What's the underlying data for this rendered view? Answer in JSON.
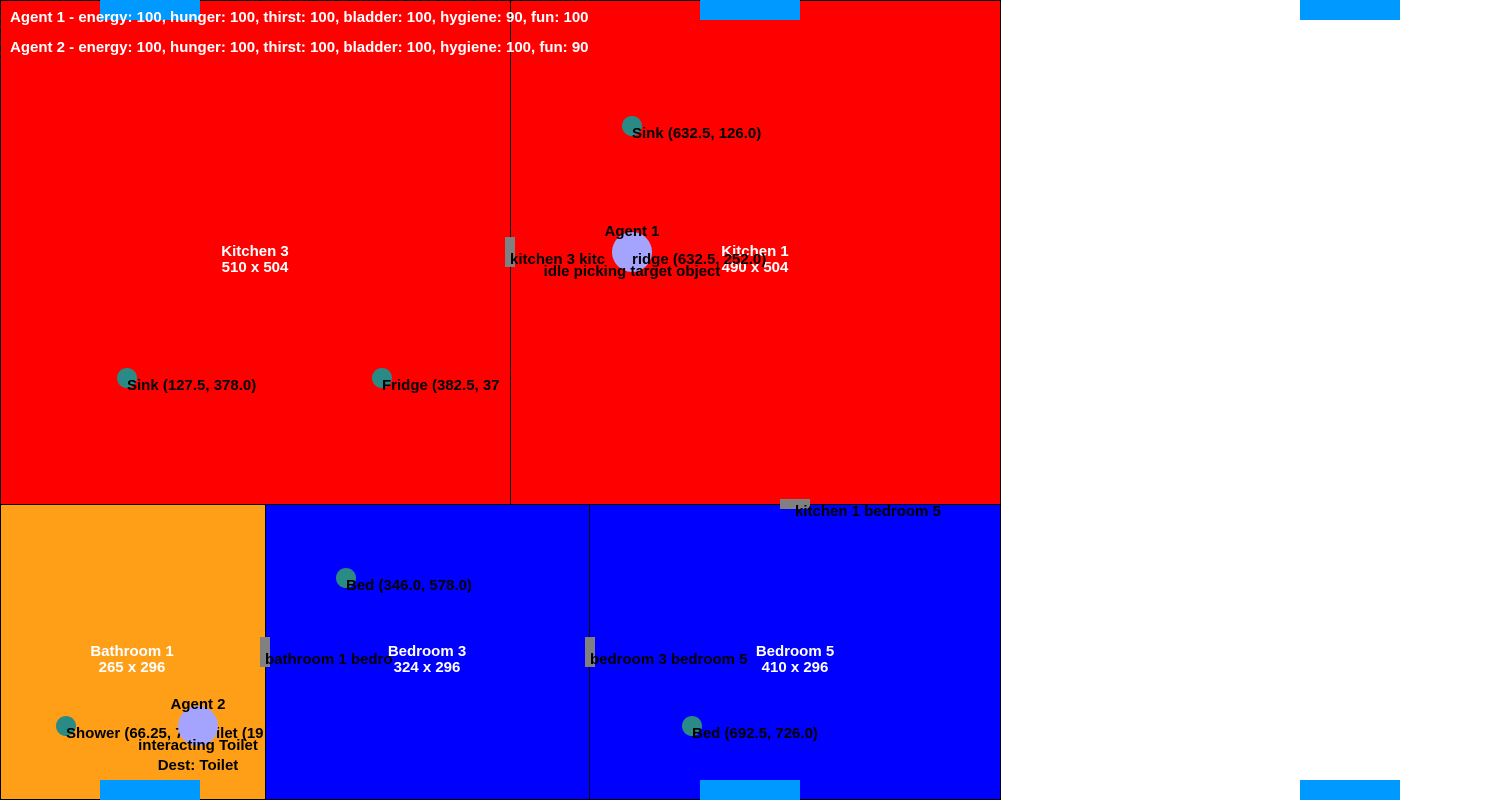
{
  "rooms": {
    "kitchen3": {
      "name": "Kitchen 3",
      "size": "510 x 504",
      "color": "#ff0000"
    },
    "kitchen1": {
      "name": "Kitchen 1",
      "size": "490 x 504",
      "color": "#ff0000"
    },
    "bathroom1": {
      "name": "Bathroom 1",
      "size": "265 x 296",
      "color": "#ff9f17"
    },
    "bedroom3": {
      "name": "Bedroom 3",
      "size": "324 x 296",
      "color": "#0000ff"
    },
    "bedroom5": {
      "name": "Bedroom 5",
      "size": "410 x 296",
      "color": "#0000ff"
    }
  },
  "objects": {
    "kitchen1_sink": "Sink (632.5, 126.0)",
    "kitchen3_sink": "Sink (127.5, 378.0)",
    "kitchen3_fridge": "Fridge (382.5, 37",
    "bedroom3_bed": "Bed (346.0, 578.0)",
    "bedroom5_bed": "Bed (692.5, 726.0)",
    "bathroom1_shower": "Shower (66.25, 7",
    "bathroom1_toilet": "ilet (19"
  },
  "doors": {
    "kitchen3_kitchen1": "kitchen 3 kitc",
    "kitchen1_bedroom5": "kitchen 1 bedroom 5",
    "bathroom1_bedroom3": "bathroom 1 bedro",
    "bedroom3_bedroom5": "bedroom 3 bedroom 5"
  },
  "agents": {
    "agent1": {
      "name": "Agent 1",
      "target": "ridge (632.5, 252.0)",
      "status": "idle picking target object",
      "stats": "Agent 1 - energy: 100, hunger: 100, thirst: 100, bladder: 100, hygiene: 90, fun: 100"
    },
    "agent2": {
      "name": "Agent 2",
      "status": "interacting Toilet",
      "dest": "Dest: Toilet",
      "stats": "Agent 2 - energy: 100, hunger: 100, thirst: 100, bladder: 100, hygiene: 100, fun: 90"
    }
  },
  "colors": {
    "object": "#2a8a86",
    "agent": "#a4a4ff",
    "door": "#808080",
    "vent": "#0099ff"
  }
}
